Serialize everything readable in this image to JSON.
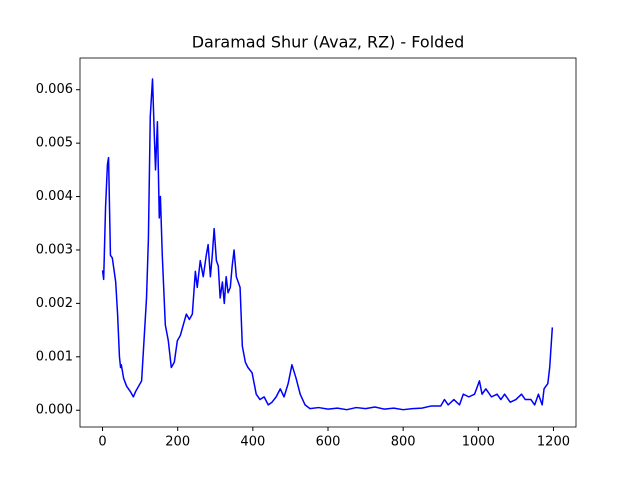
{
  "chart_data": {
    "type": "line",
    "title": "Daramad Shur (Avaz, RZ) - Folded",
    "x": [
      0,
      3,
      8,
      13,
      16,
      21,
      26,
      35,
      40,
      45,
      48,
      50,
      56,
      64,
      74,
      82,
      88,
      96,
      104,
      112,
      117,
      122,
      127,
      133,
      138,
      141,
      146,
      151,
      154,
      159,
      167,
      175,
      183,
      191,
      199,
      207,
      215,
      223,
      231,
      239,
      247,
      252,
      260,
      268,
      276,
      281,
      287,
      292,
      297,
      303,
      308,
      313,
      319,
      324,
      329,
      334,
      340,
      345,
      350,
      356,
      361,
      366,
      372,
      380,
      387,
      398,
      409,
      419,
      430,
      441,
      451,
      462,
      473,
      483,
      494,
      504,
      515,
      526,
      539,
      552,
      575,
      600,
      625,
      650,
      675,
      700,
      725,
      750,
      775,
      800,
      825,
      850,
      875,
      900,
      910,
      920,
      935,
      950,
      960,
      975,
      990,
      1003,
      1010,
      1020,
      1035,
      1050,
      1060,
      1070,
      1085,
      1100,
      1115,
      1125,
      1140,
      1150,
      1160,
      1170,
      1175,
      1185,
      1190,
      1197
    ],
    "series": [
      {
        "color": "#0000ff",
        "values": [
          0.00262,
          0.00245,
          0.0038,
          0.0046,
          0.00473,
          0.0029,
          0.00285,
          0.0024,
          0.0018,
          0.001,
          0.0008,
          0.00085,
          0.0006,
          0.00045,
          0.00035,
          0.00025,
          0.00035,
          0.00045,
          0.00055,
          0.0015,
          0.0021,
          0.0032,
          0.0055,
          0.0062,
          0.0051,
          0.0045,
          0.0054,
          0.0036,
          0.004,
          0.0029,
          0.0016,
          0.0013,
          0.0008,
          0.0009,
          0.0013,
          0.0014,
          0.0016,
          0.0018,
          0.0017,
          0.0018,
          0.0026,
          0.0023,
          0.0028,
          0.0025,
          0.0029,
          0.0031,
          0.0025,
          0.0029,
          0.0034,
          0.0028,
          0.0027,
          0.0021,
          0.0024,
          0.002,
          0.0025,
          0.0022,
          0.0023,
          0.0027,
          0.003,
          0.0025,
          0.0024,
          0.0023,
          0.0012,
          0.0009,
          0.0008,
          0.0007,
          0.0003,
          0.0002,
          0.00025,
          0.0001,
          0.00015,
          0.00025,
          0.0004,
          0.00025,
          0.0005,
          0.00085,
          0.0006,
          0.0003,
          0.0001,
          3e-05,
          5e-05,
          2e-05,
          4e-05,
          1e-05,
          5e-05,
          3e-05,
          6e-05,
          2e-05,
          4e-05,
          1e-05,
          3e-05,
          4e-05,
          8e-05,
          8e-05,
          0.0002,
          0.0001,
          0.0002,
          0.0001,
          0.0003,
          0.00025,
          0.0003,
          0.00055,
          0.0003,
          0.0004,
          0.00025,
          0.0003,
          0.0002,
          0.0003,
          0.00015,
          0.0002,
          0.0003,
          0.0002,
          0.0002,
          0.0001,
          0.0003,
          0.0001,
          0.0004,
          0.0005,
          0.0008,
          0.00155
        ]
      }
    ],
    "xlim": [
      -60,
      1260
    ],
    "xticks": [
      0,
      200,
      400,
      600,
      800,
      1000,
      1200
    ],
    "ylim": [
      -0.000314,
      0.006594
    ],
    "yticks": [
      {
        "value": 0,
        "label": "0.000"
      },
      {
        "value": 0.001,
        "label": "0.001"
      },
      {
        "value": 0.002,
        "label": "0.002"
      },
      {
        "value": 0.003,
        "label": "0.003"
      },
      {
        "value": 0.004,
        "label": "0.004"
      },
      {
        "value": 0.005,
        "label": "0.005"
      },
      {
        "value": 0.006,
        "label": "0.006"
      }
    ]
  }
}
